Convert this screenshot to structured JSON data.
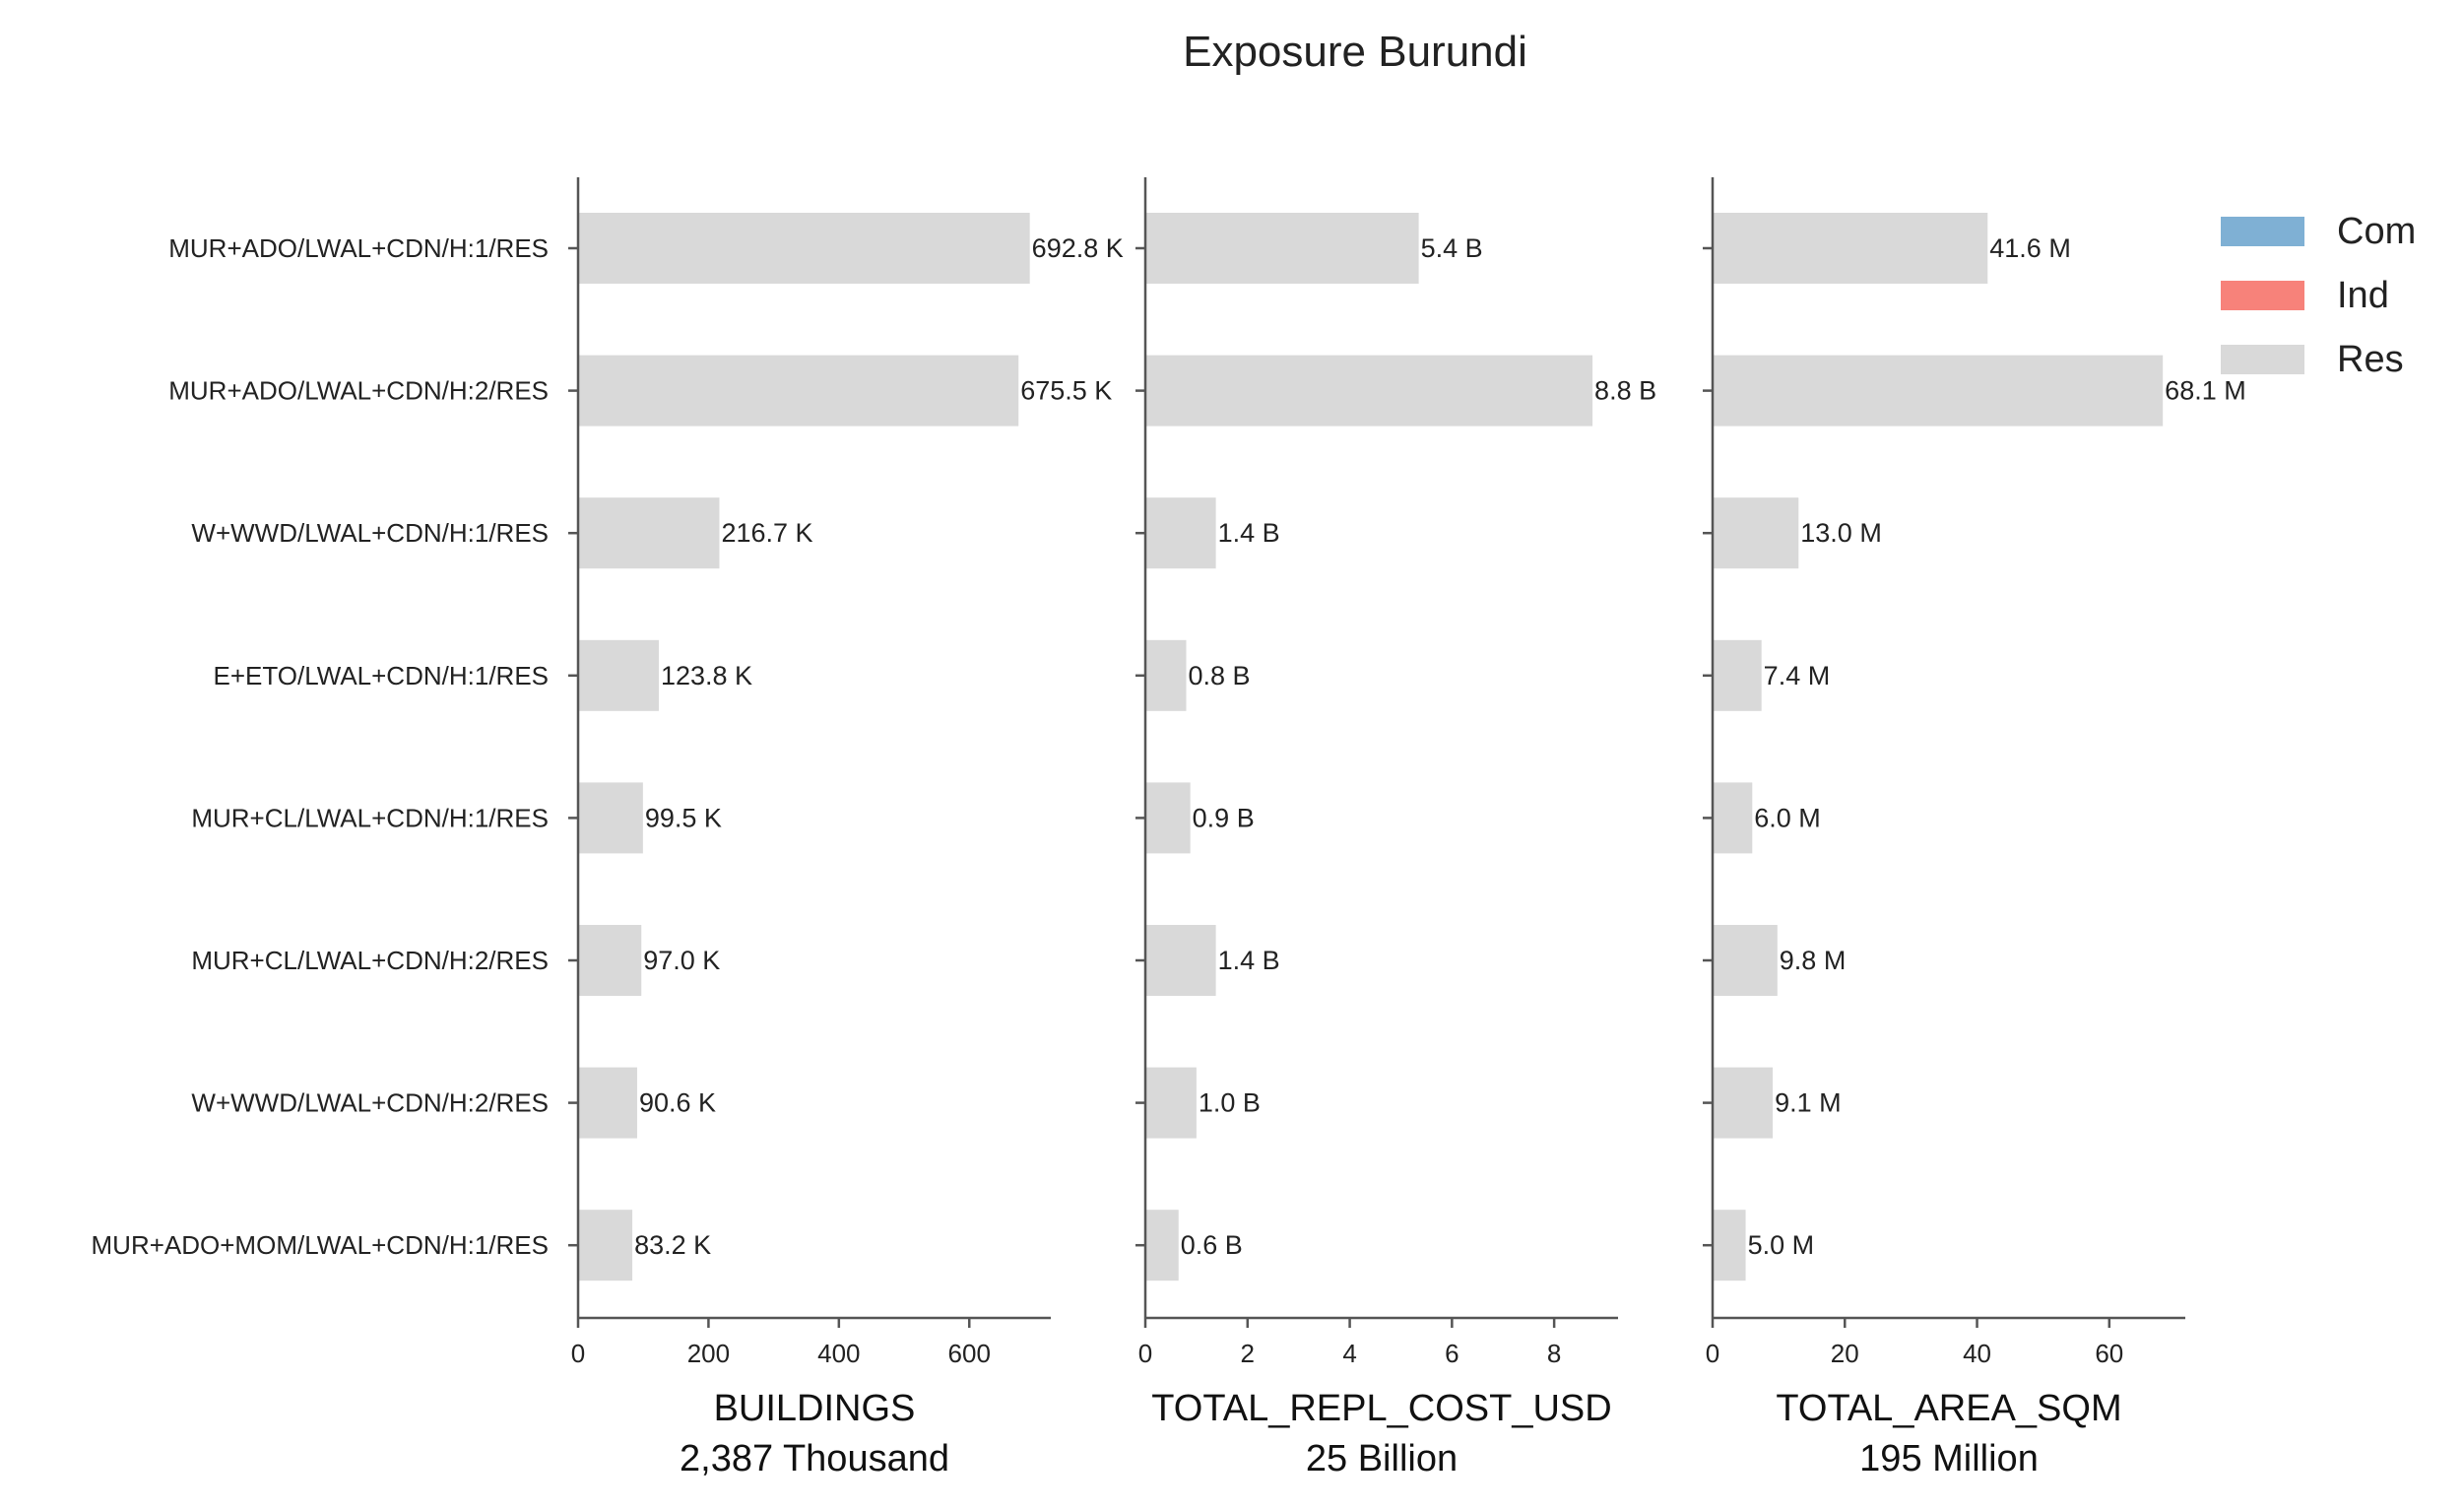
{
  "chart_data": {
    "type": "bar",
    "orientation": "horizontal",
    "title": "Exposure Burundi",
    "categories": [
      "MUR+ADO/LWAL+CDN/H:1/RES",
      "MUR+ADO/LWAL+CDN/H:2/RES",
      "W+WWD/LWAL+CDN/H:1/RES",
      "E+ETO/LWAL+CDN/H:1/RES",
      "MUR+CL/LWAL+CDN/H:1/RES",
      "MUR+CL/LWAL+CDN/H:2/RES",
      "W+WWD/LWAL+CDN/H:2/RES",
      "MUR+ADO+MOM/LWAL+CDN/H:1/RES"
    ],
    "legend": [
      {
        "name": "Com",
        "color": "#7fb0d4"
      },
      {
        "name": "Ind",
        "color": "#f7827a"
      },
      {
        "name": "Res",
        "color": "#d9d9d9"
      }
    ],
    "panels": [
      {
        "xlabel": "BUILDINGS",
        "subtitle": "2,387 Thousand",
        "xlim": [
          0,
          725
        ],
        "ticks": [
          0,
          200,
          400,
          600
        ],
        "values": [
          692.8,
          675.5,
          216.7,
          123.8,
          99.5,
          97.0,
          90.6,
          83.2
        ],
        "labels": [
          "692.8 K",
          "675.5 K",
          "216.7 K",
          "123.8 K",
          "99.5 K",
          "97.0 K",
          "90.6 K",
          "83.2 K"
        ]
      },
      {
        "xlabel": "TOTAL_REPL_COST_USD",
        "subtitle": "25 Billion",
        "xlim": [
          0,
          9.25
        ],
        "ticks": [
          0,
          2,
          4,
          6,
          8
        ],
        "values": [
          5.35,
          8.75,
          1.38,
          0.8,
          0.88,
          1.38,
          1.0,
          0.65
        ],
        "labels": [
          "5.4 B",
          "8.8 B",
          "1.4 B",
          "0.8 B",
          "0.9 B",
          "1.4 B",
          "1.0 B",
          "0.6 B"
        ]
      },
      {
        "xlabel": "TOTAL_AREA_SQM",
        "subtitle": "195 Million",
        "xlim": [
          0,
          71.5
        ],
        "ticks": [
          0,
          20,
          40,
          60
        ],
        "values": [
          41.6,
          68.1,
          13.0,
          7.4,
          6.0,
          9.8,
          9.1,
          5.0
        ],
        "labels": [
          "41.6 M",
          "68.1 M",
          "13.0 M",
          "7.4 M",
          "6.0 M",
          "9.8 M",
          "9.1 M",
          "5.0 M"
        ]
      }
    ]
  }
}
